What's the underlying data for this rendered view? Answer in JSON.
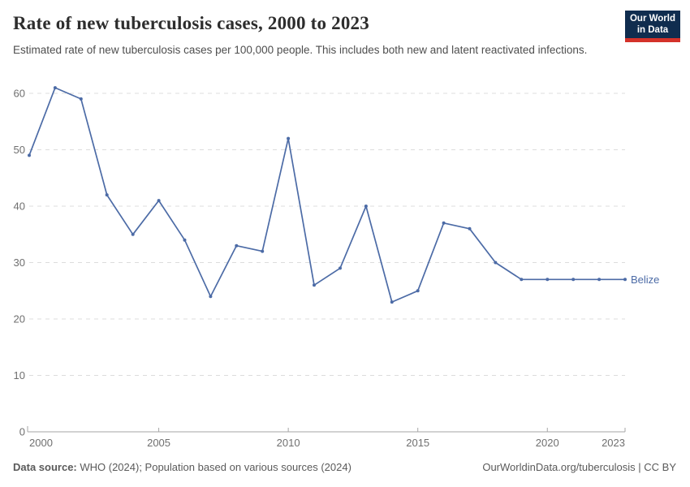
{
  "header": {
    "title": "Rate of new tuberculosis cases, 2000 to 2023",
    "subtitle": "Estimated rate of new tuberculosis cases per 100,000 people. This includes both new and latent reactivated infections.",
    "logo": {
      "line1": "Our World",
      "line2": "in Data",
      "bg_color": "#102D4F",
      "accent_color": "#D4322A"
    }
  },
  "chart_data": {
    "type": "line",
    "title": "Rate of new tuberculosis cases, 2000 to 2023",
    "x": [
      2000,
      2001,
      2002,
      2003,
      2004,
      2005,
      2006,
      2007,
      2008,
      2009,
      2010,
      2011,
      2012,
      2013,
      2014,
      2015,
      2016,
      2017,
      2018,
      2019,
      2020,
      2021,
      2022,
      2023
    ],
    "series": [
      {
        "name": "Belize",
        "color": "#4C6BA6",
        "values": [
          49,
          61,
          59,
          42,
          35,
          41,
          34,
          24,
          33,
          32,
          52,
          26,
          29,
          40,
          23,
          25,
          37,
          36,
          30,
          27,
          27,
          27,
          27,
          27
        ]
      }
    ],
    "xlabel": "",
    "ylabel": "",
    "ylim": [
      0,
      60
    ],
    "yticks": [
      0,
      10,
      20,
      30,
      40,
      50,
      60
    ],
    "xticks": [
      2000,
      2005,
      2010,
      2015,
      2020,
      2023
    ],
    "grid": "horizontal-dashed",
    "legend_position": "end-of-line",
    "grid_color": "#dcdcdc",
    "axis_color": "#a6a6a6",
    "tick_label_color": "#6f6f6f"
  },
  "footer": {
    "datasource_label": "Data source:",
    "datasource_value": " WHO (2024); Population based on various sources (2024)",
    "credit": "OurWorldinData.org/tuberculosis | CC BY"
  }
}
